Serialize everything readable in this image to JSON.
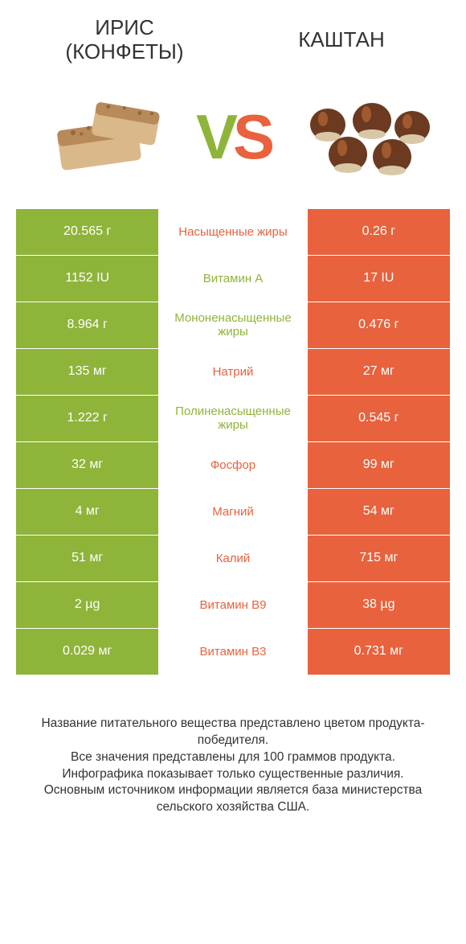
{
  "colors": {
    "green": "#8fb43a",
    "orange": "#e8623d",
    "text": "#333333",
    "bg": "#ffffff",
    "toffee_a": "#b88a5a",
    "toffee_b": "#d9b88a",
    "toffee_crumb": "#8c6a3f",
    "chestnut_body": "#6b3a20",
    "chestnut_hilite": "#a05a30",
    "chestnut_base": "#d9c8a8"
  },
  "header": {
    "left_line1": "ИРИС",
    "left_line2": "(КОНФЕТЫ)",
    "right": "КАШТАН"
  },
  "vs": {
    "v": "V",
    "s": "S"
  },
  "rows": [
    {
      "left": "20.565 г",
      "label": "Насыщенные жиры",
      "winner": "orange",
      "right": "0.26 г"
    },
    {
      "left": "1152 IU",
      "label": "Витамин A",
      "winner": "green",
      "right": "17 IU"
    },
    {
      "left": "8.964 г",
      "label": "Мононенасыщенные жиры",
      "winner": "green",
      "right": "0.476 г"
    },
    {
      "left": "135 мг",
      "label": "Натрий",
      "winner": "orange",
      "right": "27 мг"
    },
    {
      "left": "1.222 г",
      "label": "Полиненасыщенные жиры",
      "winner": "green",
      "right": "0.545 г"
    },
    {
      "left": "32 мг",
      "label": "Фосфор",
      "winner": "orange",
      "right": "99 мг"
    },
    {
      "left": "4 мг",
      "label": "Магний",
      "winner": "orange",
      "right": "54 мг"
    },
    {
      "left": "51 мг",
      "label": "Калий",
      "winner": "orange",
      "right": "715 мг"
    },
    {
      "left": "2 µg",
      "label": "Витамин B9",
      "winner": "orange",
      "right": "38 µg"
    },
    {
      "left": "0.029 мг",
      "label": "Витамин B3",
      "winner": "orange",
      "right": "0.731 мг"
    }
  ],
  "footer": {
    "l1": "Название питательного вещества представлено цветом продукта-победителя.",
    "l2": "Все значения представлены для 100 граммов продукта.",
    "l3": "Инфографика показывает только существенные различия.",
    "l4": "Основным источником информации является база министерства сельского хозяйства США."
  }
}
